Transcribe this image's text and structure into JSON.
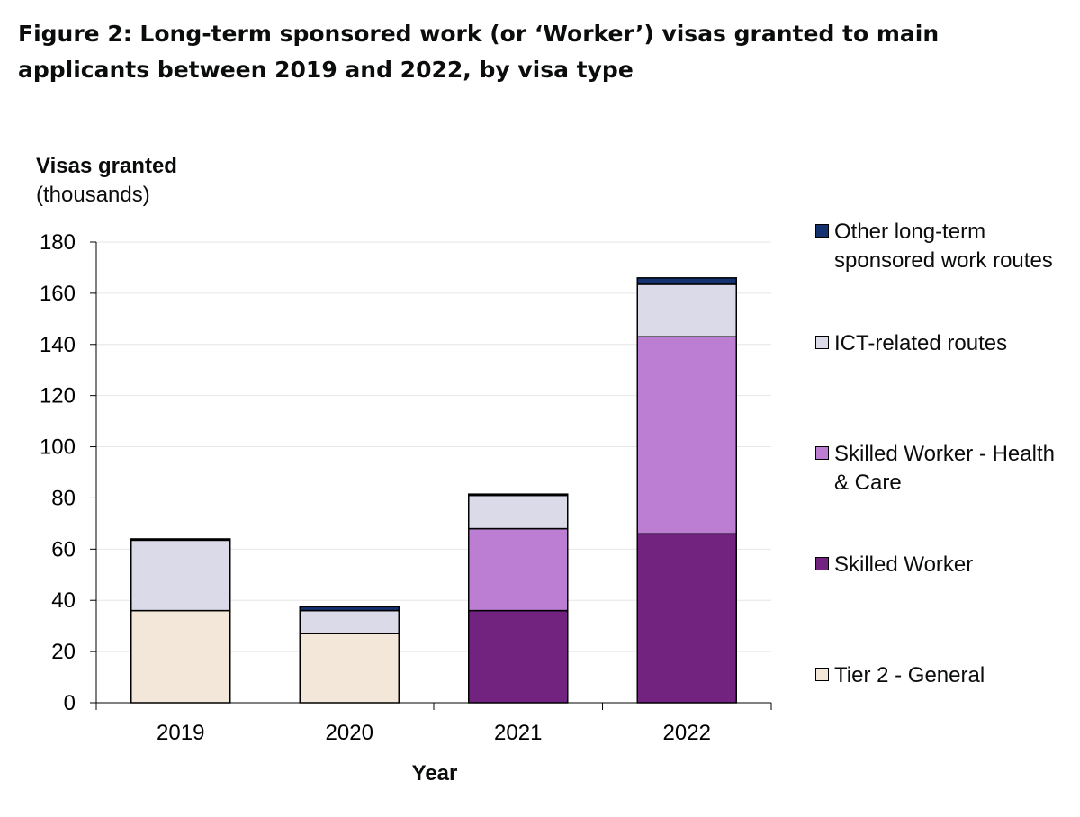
{
  "figure": {
    "title": "Figure 2: Long-term sponsored work (or ‘Worker’) visas granted to main applicants between 2019 and 2022, by visa type"
  },
  "chart_data": {
    "type": "bar",
    "stacked": true,
    "ylabel": "Visas granted",
    "ylabel_units": "(thousands)",
    "xlabel": "Year",
    "ylim": [
      0,
      180
    ],
    "yticks": [
      0,
      20,
      40,
      60,
      80,
      100,
      120,
      140,
      160,
      180
    ],
    "categories": [
      "2019",
      "2020",
      "2021",
      "2022"
    ],
    "grid": true,
    "legend_position": "right",
    "series": [
      {
        "name": "Tier 2 - General",
        "color": "#f3e7d9",
        "values": [
          36,
          27,
          0,
          0
        ]
      },
      {
        "name": "Skilled Worker",
        "color": "#72227f",
        "values": [
          0,
          0,
          36,
          66
        ]
      },
      {
        "name": "Skilled Worker - Health & Care",
        "color": "#bc7ed2",
        "values": [
          0,
          0,
          32,
          77
        ]
      },
      {
        "name": "ICT-related routes",
        "color": "#dadae8",
        "values": [
          27.5,
          9,
          13,
          20.5
        ]
      },
      {
        "name": "Other long-term sponsored work routes",
        "color": "#13326f",
        "values": [
          0.5,
          1.5,
          0.5,
          2.5
        ]
      }
    ]
  }
}
